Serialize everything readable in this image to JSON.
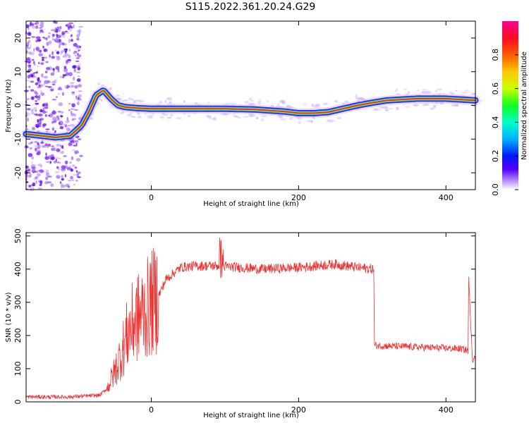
{
  "title": "S115.2022.361.20.24.G29",
  "chart_data": [
    {
      "type": "heatmap",
      "xlabel": "Height of straight line (km)",
      "ylabel": "Frequency (Hz)",
      "xlim": [
        -170,
        440
      ],
      "ylim": [
        -25,
        25
      ],
      "x_ticks": [
        0,
        200,
        400
      ],
      "y_ticks": [
        -20,
        -10,
        0,
        10,
        20
      ],
      "colorbar": {
        "label": "Normalized spectral amplitude",
        "range": [
          0,
          1
        ],
        "ticks": [
          "0.0",
          "0.2",
          "0.4",
          "0.6",
          "0.8"
        ],
        "colormap": "gist_rainbow_r"
      },
      "ridge": {
        "x": [
          -170,
          -150,
          -130,
          -110,
          -95,
          -85,
          -75,
          -65,
          -55,
          -45,
          -35,
          -20,
          0,
          100,
          140,
          180,
          200,
          220,
          240,
          260,
          280,
          300,
          320,
          360,
          400,
          440
        ],
        "y": [
          -8.5,
          -9,
          -9.5,
          -9,
          -6,
          -2,
          3,
          4.5,
          2,
          0,
          -0.5,
          -0.8,
          -1,
          -1,
          -1.2,
          -1.8,
          -2.3,
          -2.3,
          -2,
          -1,
          0,
          0.8,
          1.5,
          2,
          2,
          1.5
        ]
      }
    },
    {
      "type": "line",
      "xlabel": "Height of straight line (km)",
      "ylabel": "SNR (10 * v/v)",
      "xlim": [
        -170,
        440
      ],
      "ylim": [
        0,
        510
      ],
      "x_ticks": [
        0,
        200,
        400
      ],
      "y_ticks": [
        0,
        100,
        200,
        300,
        400,
        500
      ],
      "color": "#ee3333",
      "series_profile": {
        "x": [
          -170,
          -110,
          -70,
          -60,
          -50,
          -40,
          -30,
          -20,
          -10,
          10,
          20,
          40,
          60,
          90,
          150,
          200,
          250,
          280,
          302,
          303,
          420,
          430,
          431,
          436,
          440
        ],
        "y": [
          15,
          15,
          20,
          40,
          90,
          150,
          220,
          250,
          270,
          320,
          370,
          405,
          410,
          410,
          400,
          405,
          415,
          405,
          400,
          170,
          160,
          155,
          370,
          130,
          130
        ]
      }
    }
  ]
}
